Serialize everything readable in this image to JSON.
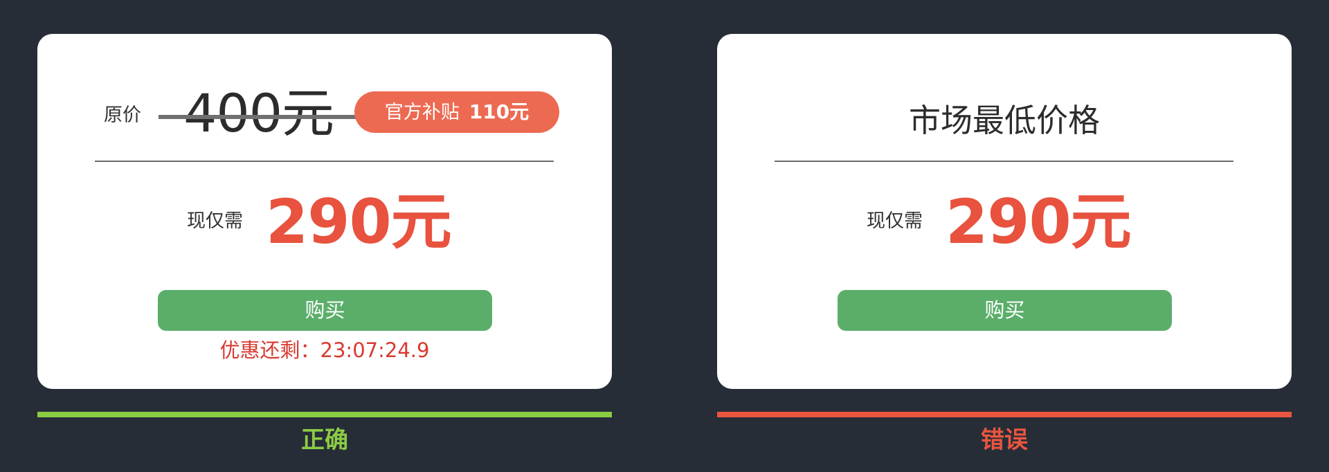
{
  "colors": {
    "background": "#262d37",
    "card": "#ffffff",
    "price_red": "#e8523e",
    "badge_orange": "#ed6a52",
    "button_green": "#5bae6a",
    "correct_green": "#8ccc44",
    "wrong_red": "#e9553f"
  },
  "left_card": {
    "original_label": "原价",
    "original_price": "400元",
    "subsidy_label": "官方补贴",
    "subsidy_amount": "110元",
    "now_label": "现仅需",
    "now_price": "290元",
    "buy_label": "购买",
    "countdown": "优惠还剩：23:07:24.9",
    "verdict": "正确"
  },
  "right_card": {
    "headline": "市场最低价格",
    "now_label": "现仅需",
    "now_price": "290元",
    "buy_label": "购买",
    "verdict": "错误"
  }
}
